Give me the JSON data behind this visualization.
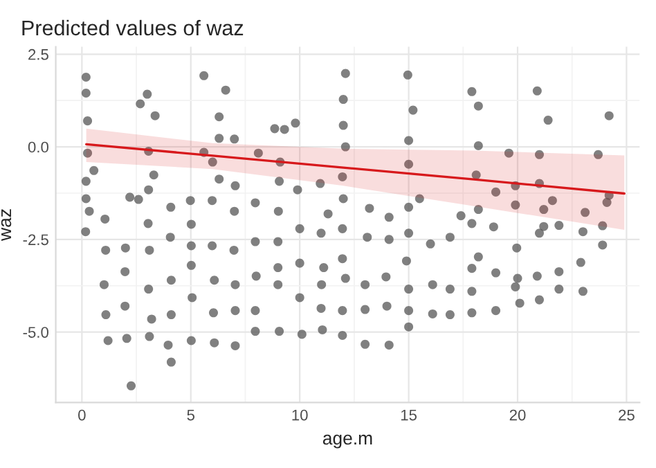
{
  "chart_data": {
    "type": "scatter",
    "title": "Predicted values of waz",
    "xlabel": "age.m",
    "ylabel": "waz",
    "xlim": [
      -1.2,
      25.6
    ],
    "ylim": [
      -6.9,
      2.7
    ],
    "xticks": [
      0,
      5,
      10,
      15,
      20,
      25
    ],
    "yticks": [
      {
        "value": -5,
        "label": "-5.0"
      },
      {
        "value": -2.5,
        "label": "-2.5"
      },
      {
        "value": 0,
        "label": "0.0"
      },
      2.5
    ],
    "grid": true,
    "marker": "circle",
    "series": [
      {
        "color": "#555555",
        "x": [
          0.19,
          0.19,
          0.26,
          0.26,
          0.19,
          0.19,
          0.34,
          0.17,
          0.55,
          1.06,
          1.09,
          1.02,
          1.1,
          1.2,
          3.0,
          2.68,
          3.36,
          3.06,
          3.3,
          3.06,
          2.2,
          2.6,
          2.0,
          1.98,
          1.98,
          2.06,
          2.26,
          3.04,
          3.1,
          3.06,
          3.1,
          3.2,
          4.08,
          4.06,
          4.1,
          4.1,
          4.1,
          3.96,
          5.6,
          6.6,
          6.3,
          6.3,
          5.6,
          6.0,
          6.3,
          5.98,
          4.98,
          5.02,
          5.02,
          5.02,
          5.06,
          5.02,
          5.98,
          6.08,
          6.04,
          6.08,
          7.0,
          7.04,
          7.0,
          6.98,
          7.04,
          7.04,
          7.04,
          8.85,
          8.1,
          7.96,
          7.96,
          8.0,
          7.96,
          7.96,
          9.3,
          9.1,
          9.06,
          9.02,
          9.0,
          9.0,
          9.06,
          9.0,
          9.8,
          9.9,
          10.0,
          10.0,
          10.0,
          10.1,
          10.94,
          10.98,
          11.1,
          11.0,
          10.98,
          11.04,
          11.3,
          12.1,
          12.0,
          12.0,
          12.1,
          11.96,
          12.0,
          11.96,
          11.96,
          12.1,
          11.96,
          11.96,
          13.1,
          13.0,
          13.0,
          13.0,
          13.2,
          14.1,
          14.1,
          13.96,
          14.0,
          14.1,
          14.96,
          15.2,
          15.0,
          15.0,
          15.5,
          15.0,
          15.0,
          14.9,
          15.0,
          15.0,
          15.0,
          16.0,
          16.1,
          16.1,
          16.9,
          16.9,
          16.9,
          17.4,
          17.9,
          18.2,
          18.2,
          18.1,
          18.2,
          17.9,
          18.2,
          17.9,
          17.9,
          17.9,
          19.0,
          18.9,
          19.0,
          19.0,
          19.6,
          19.9,
          19.9,
          19.96,
          20.0,
          19.9,
          20.1,
          20.9,
          21.4,
          21.0,
          21.0,
          21.2,
          21.2,
          21.0,
          21.6,
          21.9,
          20.9,
          21.0,
          21.9,
          21.9,
          23.0,
          23.1,
          22.9,
          23.0,
          23.7,
          24.2,
          24.2,
          23.9,
          23.9,
          24.1
        ],
        "values": [
          1.88,
          1.45,
          0.7,
          -0.17,
          -0.93,
          -1.4,
          -1.74,
          -2.29,
          -0.64,
          -1.95,
          -2.79,
          -3.72,
          -4.53,
          -5.23,
          1.42,
          1.16,
          0.84,
          -0.12,
          -0.76,
          -1.16,
          -1.36,
          -1.42,
          -2.73,
          -3.37,
          -4.3,
          -5.17,
          -6.45,
          -2.07,
          -2.79,
          -3.84,
          -5.12,
          -4.65,
          -1.63,
          -2.44,
          -3.6,
          -4.53,
          -5.81,
          -5.35,
          1.92,
          1.53,
          0.81,
          0.23,
          -0.15,
          -0.41,
          -0.87,
          -1.45,
          -1.45,
          -2.09,
          -2.67,
          -3.2,
          -4.07,
          -5.23,
          -2.67,
          -3.6,
          -4.48,
          -5.29,
          0.21,
          -1.05,
          -1.74,
          -2.79,
          -3.72,
          -4.42,
          -5.37,
          0.49,
          -0.17,
          -1.51,
          -2.56,
          -3.49,
          -4.42,
          -4.98,
          0.47,
          -0.41,
          -0.93,
          -1.74,
          -2.56,
          -3.72,
          -4.98,
          -3.26,
          0.64,
          -1.16,
          -2.21,
          -3.14,
          -4.07,
          -5.06,
          -0.99,
          -2.33,
          -3.26,
          -3.72,
          -4.36,
          -4.94,
          -1.81,
          1.98,
          1.28,
          0.58,
          0.0,
          -0.81,
          -1.4,
          -2.21,
          -3.02,
          -3.55,
          -4.42,
          -5.09,
          -2.44,
          -3.72,
          -4.39,
          -5.33,
          -1.66,
          -1.9,
          -2.5,
          -3.51,
          -4.3,
          -5.35,
          1.94,
          0.99,
          0.17,
          -0.47,
          -1.4,
          -1.63,
          -2.33,
          -3.08,
          -3.84,
          -4.42,
          -4.86,
          -2.62,
          -3.72,
          -4.51,
          -2.44,
          -3.84,
          -4.53,
          -1.86,
          1.49,
          1.1,
          0.03,
          -0.76,
          -1.69,
          -2.07,
          -2.97,
          -3.28,
          -3.9,
          -4.48,
          -1.22,
          -2.16,
          -3.4,
          -4.42,
          -0.17,
          -1.05,
          -1.57,
          -2.73,
          -3.55,
          -3.78,
          -4.22,
          1.51,
          0.72,
          -0.21,
          -0.99,
          -1.69,
          -2.15,
          -2.33,
          -1.45,
          -2.12,
          -3.49,
          -4.13,
          -3.37,
          -3.84,
          -2.29,
          -1.77,
          -3.12,
          -3.9,
          -0.21,
          0.84,
          -1.31,
          -2.13,
          -2.65,
          -1.5
        ]
      },
      {
        "type": "line",
        "color": "#d7191c",
        "marker": "none",
        "line_style": "solid",
        "x": [
          0.2,
          6,
          12,
          18,
          24.9
        ],
        "values": [
          0.07,
          -0.24,
          -0.56,
          -0.88,
          -1.26
        ],
        "lower": [
          -0.41,
          -0.6,
          -1.05,
          -1.6,
          -2.24
        ],
        "upper": [
          0.49,
          0.1,
          -0.05,
          -0.1,
          -0.23
        ]
      }
    ]
  }
}
